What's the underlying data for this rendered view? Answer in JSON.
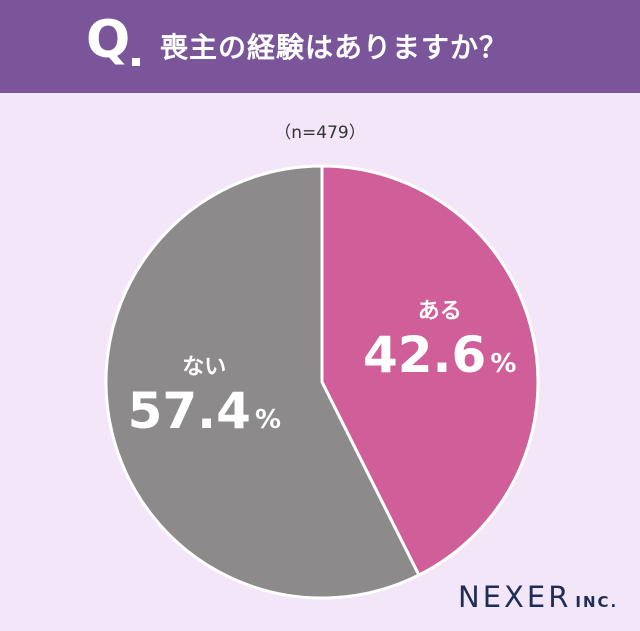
{
  "header": {
    "q_mark": "Q",
    "question": "喪主の経験はありますか？"
  },
  "sample_size": "（n=479）",
  "chart_data": {
    "type": "pie",
    "categories": [
      "ある",
      "ない"
    ],
    "values": [
      42.6,
      57.4
    ],
    "value_labels": [
      "42.6",
      "57.4"
    ],
    "unit": "%",
    "colors": [
      "#d05e98",
      "#8c8a8a"
    ],
    "start": "12 o'clock",
    "direction": "clockwise"
  },
  "logo": {
    "main": "NEXER",
    "sub": "INC."
  }
}
